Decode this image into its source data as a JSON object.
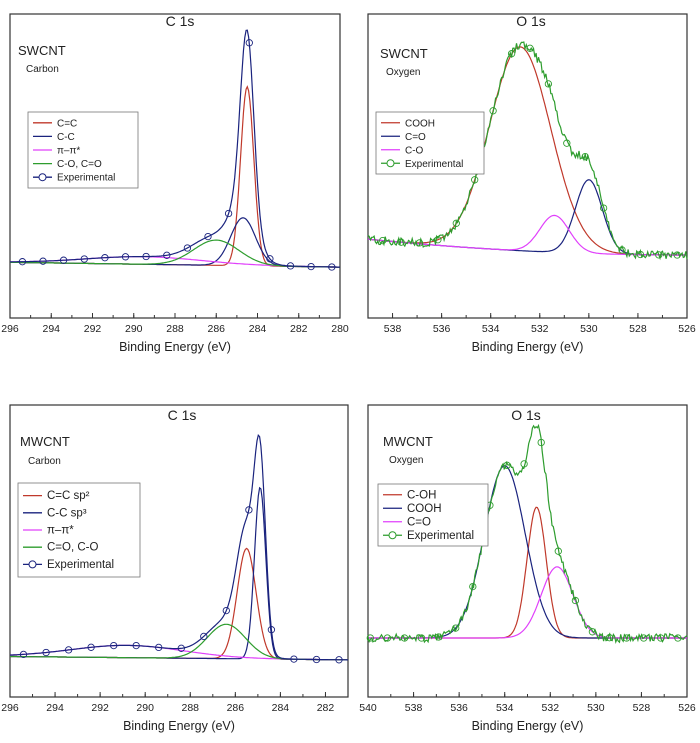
{
  "chart_data": [
    {
      "type": "line",
      "title": "C 1s",
      "sample": "SWCNT",
      "element": "Carbon",
      "xlabel": "Binding Energy (eV)",
      "xlim": [
        296,
        280
      ],
      "xticks": [
        "296",
        "294",
        "292",
        "290",
        "288",
        "286",
        "284",
        "282",
        "280"
      ],
      "legend": {
        "placement": "left",
        "entries": [
          {
            "label": "C=C",
            "color": "#c0392b",
            "marker": "line"
          },
          {
            "label": "C-C",
            "color": "#1a237e",
            "marker": "line"
          },
          {
            "label": "π–π*",
            "color": "#e040fb",
            "marker": "line"
          },
          {
            "label": "C-O, C=O",
            "color": "#2e9d2e",
            "marker": "line"
          },
          {
            "label": "Experimental",
            "color": "#1a237e",
            "marker": "circle"
          }
        ]
      },
      "series": [
        {
          "name": "C=C",
          "peak_center_eV": 284.5,
          "relative_height": 0.71
        },
        {
          "name": "C-C",
          "peak_center_eV": 284.7,
          "relative_height": 0.19
        },
        {
          "name": "π–π*",
          "peak_center_eV": 289.5,
          "relative_height": 0.03
        },
        {
          "name": "C-O, C=O",
          "peak_center_eV": 286.0,
          "relative_height": 0.1
        },
        {
          "name": "Experimental",
          "peak_center_eV": 284.6,
          "relative_height": 1.0
        }
      ]
    },
    {
      "type": "line",
      "title": "O 1s",
      "sample": "SWCNT",
      "element": "Oxygen",
      "xlabel": "Binding Energy (eV)",
      "xlim": [
        539,
        526
      ],
      "xticks": [
        "538",
        "536",
        "534",
        "532",
        "530",
        "528",
        "526"
      ],
      "legend": {
        "placement": "left",
        "entries": [
          {
            "label": "COOH",
            "color": "#c0392b",
            "marker": "line"
          },
          {
            "label": "C=O",
            "color": "#1a237e",
            "marker": "line"
          },
          {
            "label": "C-O",
            "color": "#e040fb",
            "marker": "line"
          },
          {
            "label": "Experimental",
            "color": "#2e9d2e",
            "marker": "circle"
          }
        ]
      },
      "series": [
        {
          "name": "COOH",
          "peak_center_eV": 532.8,
          "relative_height": 0.94
        },
        {
          "name": "C=O",
          "peak_center_eV": 530.0,
          "relative_height": 0.34
        },
        {
          "name": "C-O",
          "peak_center_eV": 531.4,
          "relative_height": 0.17
        },
        {
          "name": "Experimental",
          "peak_center_eV": 532.7,
          "relative_height": 1.0
        }
      ]
    },
    {
      "type": "line",
      "title": "C 1s",
      "sample": "MWCNT",
      "element": "Carbon",
      "xlabel": "Binding Energy (eV)",
      "xlim": [
        296,
        281
      ],
      "xticks": [
        "296",
        "294",
        "292",
        "290",
        "288",
        "286",
        "284",
        "282"
      ],
      "legend": {
        "placement": "left",
        "entries": [
          {
            "label": "C=C sp²",
            "color": "#c0392b",
            "marker": "line"
          },
          {
            "label": "C-C sp³",
            "color": "#1a237e",
            "marker": "line"
          },
          {
            "label": "π–π*",
            "color": "#e040fb",
            "marker": "line"
          },
          {
            "label": "C=O, C-O",
            "color": "#2e9d2e",
            "marker": "line"
          },
          {
            "label": "Experimental",
            "color": "#1a237e",
            "marker": "circle"
          }
        ]
      },
      "series": [
        {
          "name": "C=C sp²",
          "peak_center_eV": 285.5,
          "relative_height": 0.45
        },
        {
          "name": "C-C sp³",
          "peak_center_eV": 284.9,
          "relative_height": 0.7
        },
        {
          "name": "π–π*",
          "peak_center_eV": 290.8,
          "relative_height": 0.05
        },
        {
          "name": "C=O, C-O",
          "peak_center_eV": 286.4,
          "relative_height": 0.14
        },
        {
          "name": "Experimental",
          "peak_center_eV": 285.0,
          "relative_height": 1.0
        }
      ]
    },
    {
      "type": "line",
      "title": "O 1s",
      "sample": "MWCNT",
      "element": "Oxygen",
      "xlabel": "Binding Energy (eV)",
      "xlim": [
        540,
        526
      ],
      "xticks": [
        "540",
        "538",
        "536",
        "534",
        "532",
        "530",
        "528",
        "526"
      ],
      "legend": {
        "placement": "left",
        "entries": [
          {
            "label": "C-OH",
            "color": "#c0392b",
            "marker": "line"
          },
          {
            "label": "COOH",
            "color": "#1a237e",
            "marker": "line"
          },
          {
            "label": "C=O",
            "color": "#e040fb",
            "marker": "line"
          },
          {
            "label": "Experimental",
            "color": "#2e9d2e",
            "marker": "circle"
          }
        ]
      },
      "series": [
        {
          "name": "C-OH",
          "peak_center_eV": 532.6,
          "relative_height": 0.57
        },
        {
          "name": "COOH",
          "peak_center_eV": 534.0,
          "relative_height": 0.75
        },
        {
          "name": "C=O",
          "peak_center_eV": 531.7,
          "relative_height": 0.31
        },
        {
          "name": "Experimental",
          "peak_center_eV": 532.8,
          "relative_height": 1.0
        }
      ]
    }
  ]
}
